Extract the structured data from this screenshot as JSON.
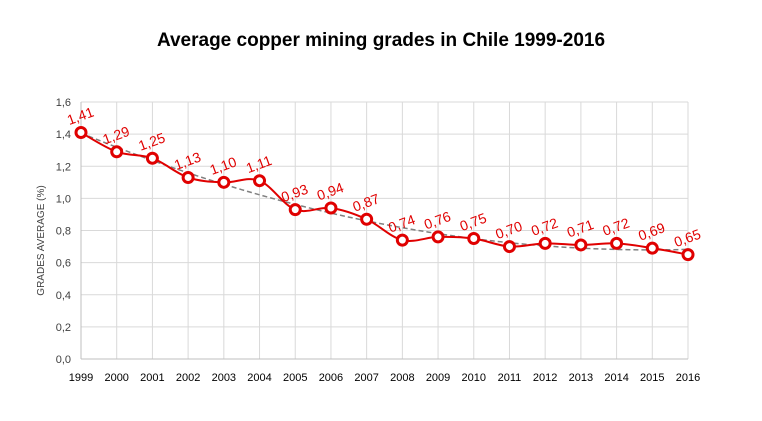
{
  "chart_data": {
    "type": "line",
    "title": "Average copper mining grades in Chile 1999-2016",
    "xlabel": "",
    "ylabel": "GRADES AVERAGE (%)",
    "categories": [
      "1999",
      "2000",
      "2001",
      "2002",
      "2003",
      "2004",
      "2005",
      "2006",
      "2007",
      "2008",
      "2009",
      "2010",
      "2011",
      "2012",
      "2013",
      "2014",
      "2015",
      "2016"
    ],
    "series": [
      {
        "values": [
          1.41,
          1.29,
          1.25,
          1.13,
          1.1,
          1.11,
          0.93,
          0.94,
          0.87,
          0.74,
          0.76,
          0.75,
          0.7,
          0.72,
          0.71,
          0.72,
          0.69,
          0.65
        ]
      }
    ],
    "data_labels": [
      "1,41",
      "1,29",
      "1,25",
      "1,13",
      "1,10",
      "1,11",
      "0,93",
      "0,94",
      "0,87",
      "0,74",
      "0,76",
      "0,75",
      "0,70",
      "0,72",
      "0,71",
      "0,72",
      "0,69",
      "0,65"
    ],
    "ylim": [
      0,
      1.6
    ],
    "yticks": [
      "0,0",
      "0,2",
      "0,4",
      "0,6",
      "0,8",
      "1,0",
      "1,2",
      "1,4",
      "1,6"
    ],
    "grid": true,
    "trendline": "dashed polynomial",
    "colors": {
      "series": "#e00000",
      "trendline": "#808080",
      "grid": "#d9d9d9"
    }
  }
}
